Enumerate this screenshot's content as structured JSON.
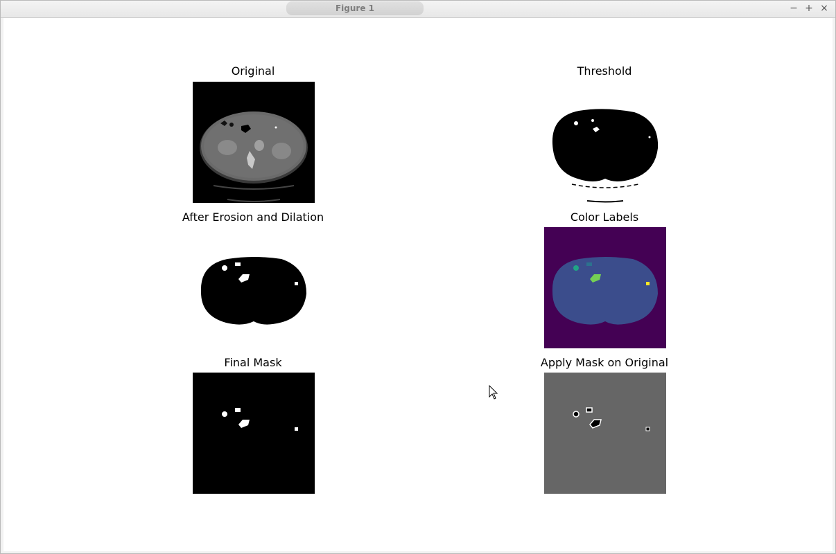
{
  "window": {
    "title": "Figure 1",
    "controls": {
      "minimize": "−",
      "maximize": "+",
      "close": "×"
    }
  },
  "figure": {
    "panels": [
      {
        "id": "original",
        "title": "Original"
      },
      {
        "id": "threshold",
        "title": "Threshold"
      },
      {
        "id": "erosion_dilation",
        "title": "After Erosion and Dilation"
      },
      {
        "id": "color_labels",
        "title": "Color Labels"
      },
      {
        "id": "final_mask",
        "title": "Final Mask"
      },
      {
        "id": "apply_mask",
        "title": "Apply Mask on Original"
      }
    ]
  },
  "colors": {
    "viridis_background": "#440154",
    "viridis_body": "#3b4d8c",
    "viridis_teal": "#20a486",
    "viridis_blue": "#2c728e",
    "viridis_green": "#75d054",
    "viridis_yellow": "#fde725",
    "masked_gray": "#666666"
  }
}
